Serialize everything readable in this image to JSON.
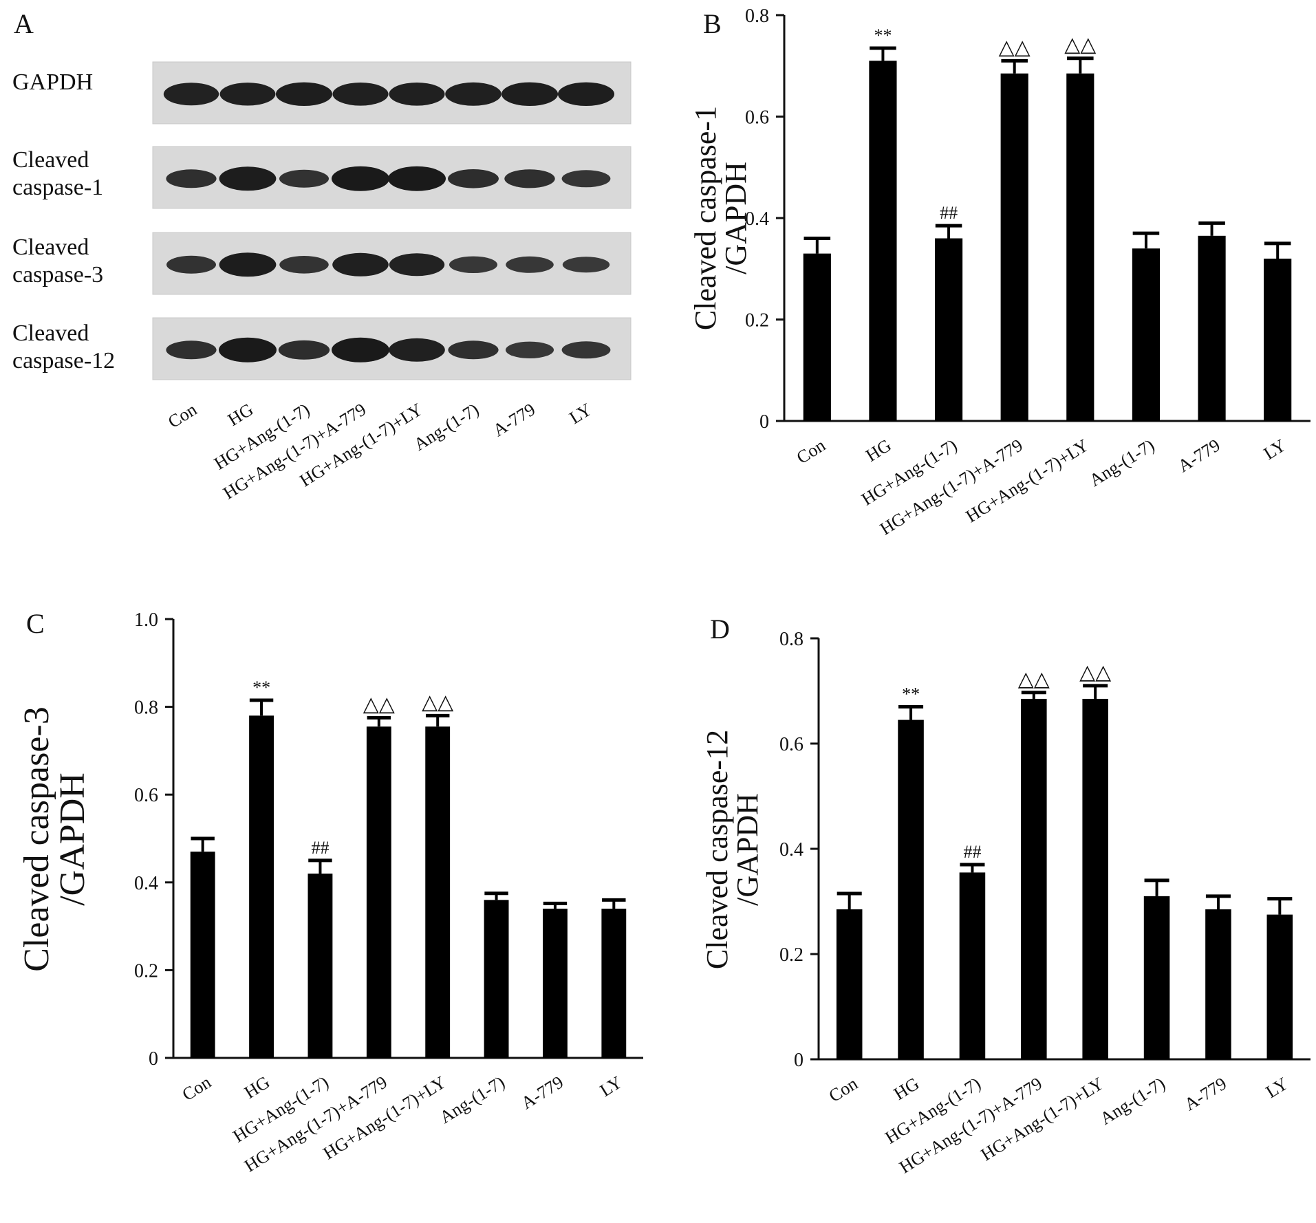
{
  "panel_letters": [
    "A",
    "B",
    "C",
    "D"
  ],
  "blot": {
    "row_labels": [
      [
        "GAPDH"
      ],
      [
        "Cleaved",
        "caspase-1"
      ],
      [
        "Cleaved",
        "caspase-3"
      ],
      [
        "Cleaved",
        "caspase-12"
      ]
    ],
    "lane_labels": [
      "Con",
      "HG",
      "HG+Ang-(1-7)",
      "HG+Ang-(1-7)+A-779",
      "HG+Ang-(1-7)+LY",
      "Ang-(1-7)",
      "A-779",
      "LY"
    ],
    "band_intensity": [
      [
        0.85,
        0.87,
        0.92,
        0.88,
        0.88,
        0.9,
        0.92,
        0.92
      ],
      [
        0.55,
        0.95,
        0.5,
        1.0,
        1.0,
        0.58,
        0.56,
        0.45
      ],
      [
        0.5,
        0.95,
        0.48,
        0.9,
        0.85,
        0.42,
        0.4,
        0.35
      ],
      [
        0.55,
        1.0,
        0.6,
        1.0,
        0.9,
        0.55,
        0.42,
        0.45
      ]
    ]
  },
  "chart_data": [
    {
      "panel": "B",
      "type": "bar",
      "categories": [
        "Con",
        "HG",
        "HG+Ang-(1-7)",
        "HG+Ang-(1-7)+A-779",
        "HG+Ang-(1-7)+LY",
        "Ang-(1-7)",
        "A-779",
        "LY"
      ],
      "values": [
        0.33,
        0.71,
        0.36,
        0.685,
        0.685,
        0.34,
        0.365,
        0.32
      ],
      "errors": [
        0.03,
        0.025,
        0.025,
        0.025,
        0.03,
        0.03,
        0.025,
        0.03
      ],
      "annotations": [
        "",
        "**",
        "##",
        "△△",
        "△△",
        "",
        "",
        ""
      ],
      "ylabel": [
        "Cleaved caspase-1",
        "/GAPDH"
      ],
      "ylim": [
        0,
        0.8
      ],
      "yticks": [
        "0",
        "0.2",
        "0.4",
        "0.6",
        "0.8"
      ]
    },
    {
      "panel": "C",
      "type": "bar",
      "categories": [
        "Con",
        "HG",
        "HG+Ang-(1-7)",
        "HG+Ang-(1-7)+A-779",
        "HG+Ang-(1-7)+LY",
        "Ang-(1-7)",
        "A-779",
        "LY"
      ],
      "values": [
        0.47,
        0.78,
        0.42,
        0.755,
        0.755,
        0.36,
        0.34,
        0.34
      ],
      "errors": [
        0.03,
        0.035,
        0.03,
        0.02,
        0.025,
        0.015,
        0.012,
        0.02
      ],
      "annotations": [
        "",
        "**",
        "##",
        "△△",
        "△△",
        "",
        "",
        ""
      ],
      "ylabel": [
        "Cleaved caspase-3",
        "/GAPDH"
      ],
      "ylim": [
        0,
        1.0
      ],
      "yticks": [
        "0",
        "0.2",
        "0.4",
        "0.6",
        "0.8",
        "1.0"
      ]
    },
    {
      "panel": "D",
      "type": "bar",
      "categories": [
        "Con",
        "HG",
        "HG+Ang-(1-7)",
        "HG+Ang-(1-7)+A-779",
        "HG+Ang-(1-7)+LY",
        "Ang-(1-7)",
        "A-779",
        "LY"
      ],
      "values": [
        0.285,
        0.645,
        0.355,
        0.685,
        0.685,
        0.31,
        0.285,
        0.275
      ],
      "errors": [
        0.03,
        0.025,
        0.015,
        0.012,
        0.025,
        0.03,
        0.025,
        0.03
      ],
      "annotations": [
        "",
        "**",
        "##",
        "△△",
        "△△",
        "",
        "",
        ""
      ],
      "ylabel": [
        "Cleaved caspase-12",
        "/GAPDH"
      ],
      "ylim": [
        0,
        0.8
      ],
      "yticks": [
        "0",
        "0.2",
        "0.4",
        "0.6",
        "0.8"
      ]
    }
  ]
}
